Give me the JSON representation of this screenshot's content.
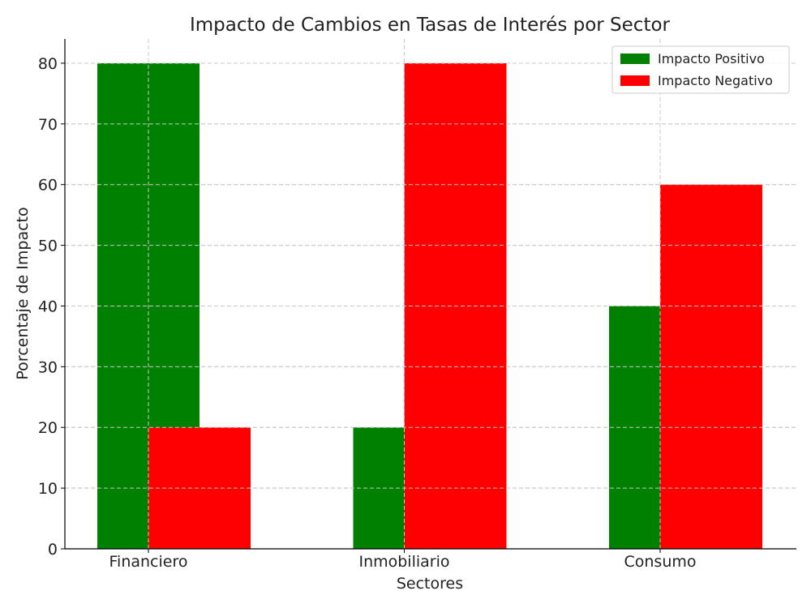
{
  "chart_data": {
    "type": "bar",
    "title": "Impacto de Cambios en Tasas de Interés por Sector",
    "xlabel": "Sectores",
    "ylabel": "Porcentaje de Impacto",
    "categories": [
      "Financiero",
      "Inmobiliario",
      "Consumo"
    ],
    "series": [
      {
        "name": "Impacto Positivo",
        "values": [
          80,
          20,
          40
        ],
        "color": "#008000"
      },
      {
        "name": "Impacto Negativo",
        "values": [
          20,
          80,
          60
        ],
        "color": "#ff0000"
      }
    ],
    "ylim": [
      0,
      84
    ],
    "yticks": [
      0,
      10,
      20,
      30,
      40,
      50,
      60,
      70,
      80
    ],
    "grid": true,
    "legend_position": "top-right"
  }
}
